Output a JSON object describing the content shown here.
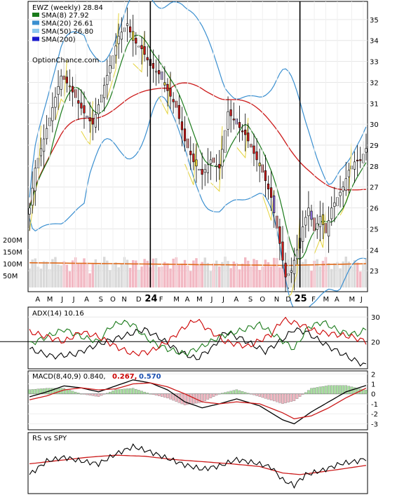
{
  "chart_data": [
    {
      "type": "candlestick",
      "title": "EWZ (weekly) 28.84",
      "watermark": "OptionChance.com",
      "legend": [
        {
          "label": "SMA(8) 27.92",
          "color": "#1a7a1a"
        },
        {
          "label": "SMA(20) 26.61",
          "color": "#3a8fd0"
        },
        {
          "label": "SMA(50) 26.80",
          "color": "#8ec9ee"
        },
        {
          "label": "SMA(200)",
          "color": "#1a1acc"
        }
      ],
      "x_tick_labels": [
        "A",
        "M",
        "J",
        "J",
        "A",
        "S",
        "O",
        "N",
        "D",
        "24",
        "F",
        "M",
        "A",
        "M",
        "J",
        "J",
        "A",
        "S",
        "O",
        "N",
        "D",
        "25",
        "F",
        "M",
        "A",
        "M",
        "J"
      ],
      "bold_ticks": [
        "24",
        "25"
      ],
      "y_ticks": [
        35,
        34,
        33,
        32,
        31,
        30,
        29,
        28,
        27,
        26,
        25,
        24,
        23
      ],
      "ylim": [
        22.2,
        35.8
      ],
      "close_anchors": [
        [
          0,
          26.0
        ],
        [
          2,
          27.9
        ],
        [
          5,
          29.3
        ],
        [
          8,
          30.8
        ],
        [
          11,
          32.3
        ],
        [
          14,
          31.8
        ],
        [
          17,
          31.0
        ],
        [
          20,
          30.3
        ],
        [
          22,
          30.0
        ],
        [
          25,
          31.4
        ],
        [
          28,
          32.8
        ],
        [
          31,
          34.2
        ],
        [
          34,
          34.8
        ],
        [
          36,
          34.0
        ],
        [
          39,
          33.6
        ],
        [
          42,
          32.8
        ],
        [
          45,
          32.4
        ],
        [
          48,
          31.6
        ],
        [
          51,
          30.8
        ],
        [
          54,
          29.2
        ],
        [
          57,
          28.2
        ],
        [
          60,
          27.6
        ],
        [
          63,
          28.3
        ],
        [
          66,
          27.9
        ],
        [
          69,
          30.6
        ],
        [
          72,
          30.0
        ],
        [
          75,
          29.5
        ],
        [
          78,
          28.6
        ],
        [
          81,
          27.7
        ],
        [
          84,
          26.5
        ],
        [
          87,
          24.3
        ],
        [
          89,
          22.7
        ],
        [
          91,
          23.0
        ],
        [
          93,
          24.0
        ],
        [
          95,
          25.1
        ],
        [
          97,
          26.0
        ],
        [
          99,
          24.9
        ],
        [
          101,
          25.6
        ],
        [
          103,
          24.8
        ],
        [
          105,
          26.0
        ],
        [
          107,
          26.5
        ],
        [
          109,
          27.0
        ],
        [
          111,
          27.8
        ],
        [
          113,
          28.2
        ],
        [
          115,
          28.3
        ],
        [
          117,
          28.84
        ]
      ],
      "volume_label_ticks": [
        "200M",
        "150M",
        "100M",
        "50M"
      ]
    },
    {
      "type": "line",
      "title": "ADX(14) 10.16",
      "y_ticks": [
        30,
        20
      ],
      "ylim": [
        9,
        34
      ],
      "series": [
        {
          "color": "#000000",
          "anchors": [
            [
              0,
              17
            ],
            [
              8,
              14
            ],
            [
              16,
              15
            ],
            [
              24,
              19
            ],
            [
              32,
              22
            ],
            [
              40,
              25
            ],
            [
              46,
              21
            ],
            [
              52,
              16
            ],
            [
              58,
              13
            ],
            [
              64,
              18
            ],
            [
              68,
              24
            ],
            [
              74,
              21
            ],
            [
              82,
              16
            ],
            [
              88,
              21
            ],
            [
              92,
              25
            ],
            [
              96,
              24
            ],
            [
              104,
              18
            ],
            [
              112,
              13
            ],
            [
              117,
              10.2
            ]
          ]
        },
        {
          "color": "#1a7a1a",
          "anchors": [
            [
              0,
              19
            ],
            [
              6,
              22
            ],
            [
              12,
              25
            ],
            [
              18,
              22
            ],
            [
              24,
              20
            ],
            [
              28,
              26
            ],
            [
              32,
              28
            ],
            [
              36,
              27
            ],
            [
              40,
              22
            ],
            [
              44,
              19
            ],
            [
              48,
              17
            ],
            [
              54,
              15
            ],
            [
              60,
              18
            ],
            [
              66,
              22
            ],
            [
              72,
              24
            ],
            [
              80,
              27
            ],
            [
              86,
              22
            ],
            [
              92,
              17
            ],
            [
              97,
              26
            ],
            [
              102,
              28
            ],
            [
              108,
              24
            ],
            [
              114,
              23
            ],
            [
              117,
              25
            ]
          ]
        },
        {
          "color": "#cc0000",
          "anchors": [
            [
              0,
              24
            ],
            [
              6,
              22
            ],
            [
              12,
              20
            ],
            [
              18,
              24
            ],
            [
              24,
              22
            ],
            [
              30,
              18
            ],
            [
              36,
              15
            ],
            [
              42,
              16
            ],
            [
              48,
              20
            ],
            [
              54,
              26
            ],
            [
              58,
              29
            ],
            [
              62,
              25
            ],
            [
              68,
              20
            ],
            [
              76,
              18
            ],
            [
              84,
              23
            ],
            [
              88,
              29
            ],
            [
              94,
              27
            ],
            [
              100,
              24
            ],
            [
              106,
              23
            ],
            [
              112,
              22
            ],
            [
              117,
              20
            ]
          ]
        }
      ]
    },
    {
      "type": "macd",
      "title": "MACD(8,40,9) 0.840,",
      "value_red": "0.267,",
      "value_blue": "0.570",
      "y_ticks": [
        2,
        1,
        0,
        -1,
        -2,
        -3
      ],
      "ylim": [
        -3.6,
        2.3
      ],
      "macd_anchors": [
        [
          0,
          -0.3
        ],
        [
          6,
          0.2
        ],
        [
          12,
          0.8
        ],
        [
          18,
          0.6
        ],
        [
          24,
          0.2
        ],
        [
          30,
          0.8
        ],
        [
          36,
          1.4
        ],
        [
          42,
          1.1
        ],
        [
          48,
          0.4
        ],
        [
          54,
          -0.8
        ],
        [
          60,
          -1.4
        ],
        [
          66,
          -1.0
        ],
        [
          72,
          -0.5
        ],
        [
          80,
          -1.2
        ],
        [
          88,
          -2.6
        ],
        [
          92,
          -3.0
        ],
        [
          98,
          -1.8
        ],
        [
          104,
          -0.8
        ],
        [
          110,
          0.2
        ],
        [
          117,
          0.84
        ]
      ],
      "signal_anchors": [
        [
          0,
          -0.6
        ],
        [
          6,
          -0.2
        ],
        [
          12,
          0.4
        ],
        [
          18,
          0.6
        ],
        [
          24,
          0.4
        ],
        [
          30,
          0.5
        ],
        [
          36,
          1.0
        ],
        [
          42,
          1.1
        ],
        [
          48,
          0.7
        ],
        [
          54,
          0.0
        ],
        [
          60,
          -0.8
        ],
        [
          66,
          -1.0
        ],
        [
          72,
          -0.8
        ],
        [
          80,
          -1.0
        ],
        [
          88,
          -1.9
        ],
        [
          92,
          -2.5
        ],
        [
          98,
          -2.2
        ],
        [
          104,
          -1.4
        ],
        [
          110,
          -0.4
        ],
        [
          117,
          0.57
        ]
      ]
    },
    {
      "type": "line",
      "title": "RS vs SPY",
      "rs_anchors": [
        [
          0,
          0.3
        ],
        [
          6,
          0.55
        ],
        [
          12,
          0.62
        ],
        [
          18,
          0.55
        ],
        [
          24,
          0.5
        ],
        [
          30,
          0.68
        ],
        [
          36,
          0.82
        ],
        [
          42,
          0.72
        ],
        [
          48,
          0.6
        ],
        [
          54,
          0.48
        ],
        [
          60,
          0.4
        ],
        [
          66,
          0.46
        ],
        [
          72,
          0.58
        ],
        [
          78,
          0.52
        ],
        [
          84,
          0.44
        ],
        [
          88,
          0.2
        ],
        [
          92,
          0.1
        ],
        [
          96,
          0.3
        ],
        [
          102,
          0.38
        ],
        [
          108,
          0.5
        ],
        [
          114,
          0.55
        ],
        [
          117,
          0.6
        ]
      ],
      "trend_anchors": [
        [
          0,
          0.5
        ],
        [
          10,
          0.56
        ],
        [
          20,
          0.62
        ],
        [
          30,
          0.66
        ],
        [
          40,
          0.64
        ],
        [
          50,
          0.58
        ],
        [
          60,
          0.54
        ],
        [
          70,
          0.5
        ],
        [
          80,
          0.45
        ],
        [
          88,
          0.33
        ],
        [
          94,
          0.3
        ],
        [
          100,
          0.34
        ],
        [
          108,
          0.4
        ],
        [
          117,
          0.47
        ]
      ]
    }
  ]
}
